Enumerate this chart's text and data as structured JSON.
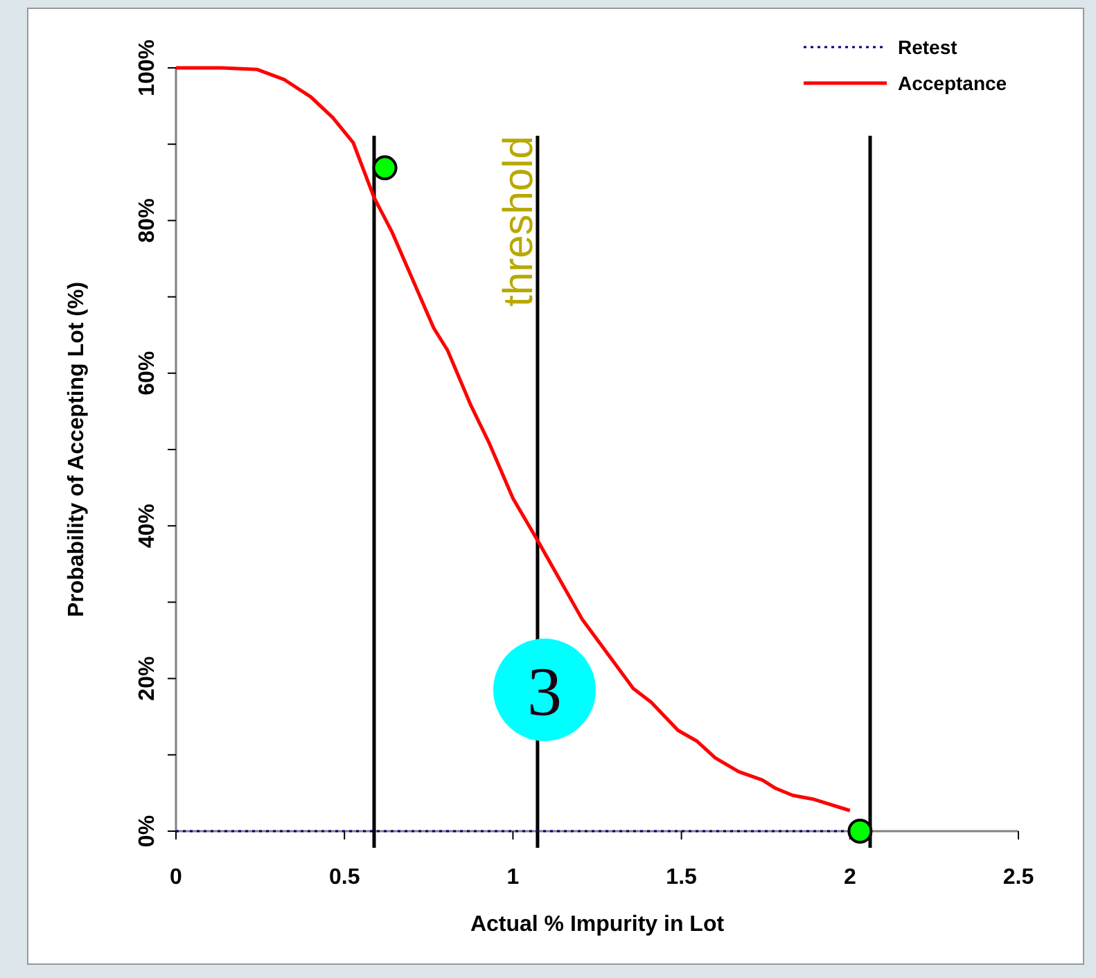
{
  "chart_data": {
    "type": "line",
    "xlabel": "Actual % Impurity in Lot",
    "ylabel": "Probability of Accepting Lot (%)",
    "xlim": [
      0,
      2.5
    ],
    "xticks": [
      0,
      0.5,
      1,
      1.5,
      2,
      2.5
    ],
    "ylim": [
      0,
      100
    ],
    "yticks": [
      {
        "value": 0,
        "label": "0%"
      },
      {
        "value": 10,
        "label": null
      },
      {
        "value": 20,
        "label": "20%"
      },
      {
        "value": 30,
        "label": null
      },
      {
        "value": 40,
        "label": "40%"
      },
      {
        "value": 50,
        "label": null
      },
      {
        "value": 60,
        "label": "60%"
      },
      {
        "value": 70,
        "label": null
      },
      {
        "value": 80,
        "label": "80%"
      },
      {
        "value": 90,
        "label": null
      },
      {
        "value": 100,
        "label": "100%"
      }
    ],
    "grid": false,
    "legend": "top right",
    "series": [
      {
        "name": "Retest",
        "color": "#000080",
        "line_style": "dotted",
        "marker": "none",
        "x": [
          0,
          2
        ],
        "values": [
          0,
          0
        ]
      },
      {
        "name": "Acceptance",
        "color": "#ff0000",
        "line_style": "solid",
        "marker": "none",
        "x": [
          0,
          0.136,
          0.24,
          0.32,
          0.4,
          0.465,
          0.526,
          0.588,
          0.64,
          0.765,
          0.806,
          0.876,
          0.93,
          1.0,
          1.073,
          1.205,
          1.357,
          1.41,
          1.49,
          1.546,
          1.6,
          1.67,
          1.74,
          1.78,
          1.83,
          1.89,
          2.0
        ],
        "values": [
          100,
          100,
          99.8,
          98.5,
          96.2,
          93.5,
          90.2,
          83,
          78.6,
          65.9,
          63,
          55.7,
          50.8,
          43.6,
          38.1,
          27.8,
          18.7,
          16.9,
          13.2,
          11.8,
          9.6,
          7.8,
          6.7,
          5.6,
          4.7,
          4.2,
          2.7
        ]
      },
      {
        "type": "scatter",
        "color": "#00ff00",
        "marker": "circle",
        "x": [
          0.62,
          2.03
        ],
        "values": [
          86.9,
          0
        ]
      }
    ],
    "ref_lines": [
      {
        "axis": "x",
        "value": 0.588,
        "color": "#000000"
      },
      {
        "axis": "x",
        "value": 1.073,
        "label": "threshold",
        "color": "#000000"
      },
      {
        "axis": "x",
        "value": 2.06,
        "color": "#000000"
      }
    ],
    "annotations": [
      "3"
    ]
  }
}
